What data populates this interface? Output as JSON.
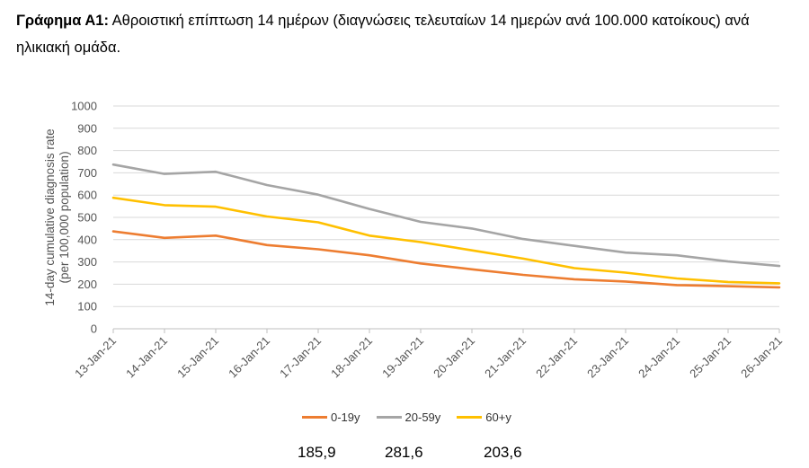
{
  "caption": {
    "prefix": "Γράφημα Α1:",
    "text": "Αθροιστική επίπτωση 14 ημέρων (διαγνώσεις τελευταίων 14 ημερών ανά 100.000 κατοίκους) ανά ηλικιακή ομάδα."
  },
  "chart_data": {
    "type": "line",
    "title": "",
    "xlabel": "",
    "ylabel": "14-day cumulative diagnosis rate (per 100,000 population)",
    "ylabel_lines": [
      "14-day cumulative diagnosis rate",
      "(per 100,000 population)"
    ],
    "ylim": [
      0,
      1000
    ],
    "yticks": [
      0,
      100,
      200,
      300,
      400,
      500,
      600,
      700,
      800,
      900,
      1000
    ],
    "grid": true,
    "legend": "bottom",
    "categories": [
      "13-Jan-21",
      "14-Jan-21",
      "15-Jan-21",
      "16-Jan-21",
      "17-Jan-21",
      "18-Jan-21",
      "19-Jan-21",
      "20-Jan-21",
      "21-Jan-21",
      "22-Jan-21",
      "23-Jan-21",
      "24-Jan-21",
      "25-Jan-21",
      "26-Jan-21"
    ],
    "series": [
      {
        "name": "0-19y",
        "color": "#ED7D31",
        "values": [
          437,
          408,
          418,
          376,
          357,
          330,
          293,
          267,
          242,
          222,
          212,
          196,
          191,
          186
        ]
      },
      {
        "name": "20-59y",
        "color": "#A5A5A5",
        "values": [
          737,
          695,
          705,
          645,
          602,
          538,
          480,
          450,
          403,
          372,
          342,
          330,
          302,
          282
        ]
      },
      {
        "name": "60+y",
        "color": "#FFC000",
        "values": [
          588,
          555,
          548,
          504,
          478,
          418,
          389,
          352,
          315,
          272,
          252,
          226,
          210,
          204
        ]
      }
    ]
  },
  "finals": [
    "185,9",
    "281,6",
    "203,6"
  ]
}
